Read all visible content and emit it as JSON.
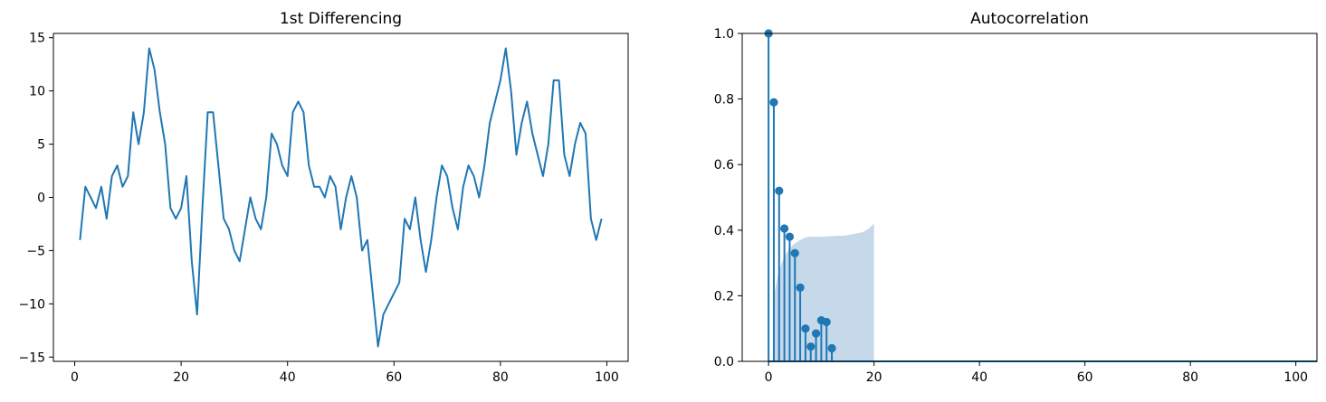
{
  "colors": {
    "series": "#1f77b4",
    "confidence_band": "#c5d9eb",
    "axes": "#000000",
    "background": "#ffffff"
  },
  "chart_data": [
    {
      "type": "line",
      "title": "1st Differencing",
      "xlabel": "",
      "ylabel": "",
      "xlim": [
        -4,
        104
      ],
      "ylim": [
        -15.4,
        15.4
      ],
      "xticks": [
        0,
        20,
        40,
        60,
        80,
        100
      ],
      "xtick_labels": [
        "0",
        "20",
        "40",
        "60",
        "80",
        "100"
      ],
      "yticks": [
        -15,
        -10,
        -5,
        0,
        5,
        10,
        15
      ],
      "ytick_labels": [
        "−15",
        "−10",
        "−5",
        "0",
        "5",
        "10",
        "15"
      ],
      "grid": false,
      "series": [
        {
          "x": [
            1,
            2,
            3,
            4,
            5,
            6,
            7,
            8,
            9,
            10,
            11,
            12,
            13,
            14,
            15,
            16,
            17,
            18,
            19,
            20,
            21,
            22,
            23,
            24,
            25,
            26,
            27,
            28,
            29,
            30,
            31,
            32,
            33,
            34,
            35,
            36,
            37,
            38,
            39,
            40,
            41,
            42,
            43,
            44,
            45,
            46,
            47,
            48,
            49,
            50,
            51,
            52,
            53,
            54,
            55,
            56,
            57,
            58,
            59,
            60,
            61,
            62,
            63,
            64,
            65,
            66,
            67,
            68,
            69,
            70,
            71,
            72,
            73,
            74,
            75,
            76,
            77,
            78,
            79,
            80,
            81,
            82,
            83,
            84,
            85,
            86,
            87,
            88,
            89,
            90,
            91,
            92,
            93,
            94,
            95,
            96,
            97,
            98,
            99
          ],
          "values": [
            -4,
            1,
            0,
            -1,
            1,
            -2,
            2,
            3,
            1,
            2,
            8,
            5,
            8,
            14,
            12,
            8,
            5,
            -1,
            -2,
            -1,
            2,
            -6,
            -11,
            -1,
            8,
            8,
            3,
            -2,
            -3,
            -5,
            -6,
            -3,
            0,
            -2,
            -3,
            0,
            6,
            5,
            3,
            2,
            8,
            9,
            8,
            3,
            1,
            1,
            0,
            2,
            1,
            -3,
            0,
            2,
            0,
            -5,
            -4,
            -9,
            -14,
            -11,
            -10,
            -9,
            -8,
            -2,
            -3,
            0,
            -4,
            -7,
            -4,
            0,
            3,
            2,
            -1,
            -3,
            1,
            3,
            2,
            0,
            3,
            7,
            9,
            11,
            14,
            10,
            4,
            7,
            9,
            6,
            4,
            2,
            5,
            11,
            11,
            4,
            2,
            5,
            7,
            6,
            -2,
            -4,
            -2
          ]
        }
      ]
    },
    {
      "type": "stem",
      "title": "Autocorrelation",
      "xlabel": "",
      "ylabel": "",
      "xlim": [
        -5,
        104
      ],
      "ylim": [
        0,
        1.0
      ],
      "xticks": [
        0,
        20,
        40,
        60,
        80,
        100
      ],
      "xtick_labels": [
        "0",
        "20",
        "40",
        "60",
        "80",
        "100"
      ],
      "yticks": [
        0.0,
        0.2,
        0.4,
        0.6,
        0.8,
        1.0
      ],
      "ytick_labels": [
        "0.0",
        "0.2",
        "0.4",
        "0.6",
        "0.8",
        "1.0"
      ],
      "grid": false,
      "lags": [
        0,
        1,
        2,
        3,
        4,
        5,
        6,
        7,
        8,
        9,
        10,
        11,
        12
      ],
      "acf": [
        1.0,
        0.79,
        0.52,
        0.405,
        0.38,
        0.33,
        0.225,
        0.1,
        0.045,
        0.085,
        0.125,
        0.12,
        0.04
      ],
      "confidence_band": {
        "x": [
          1,
          2,
          3,
          4,
          5,
          6,
          7,
          8,
          9,
          10,
          11,
          12,
          13,
          14,
          15,
          16,
          17,
          18,
          19,
          20
        ],
        "upper": [
          0.2,
          0.28,
          0.32,
          0.345,
          0.36,
          0.37,
          0.378,
          0.38,
          0.38,
          0.38,
          0.381,
          0.382,
          0.383,
          0.383,
          0.385,
          0.388,
          0.391,
          0.395,
          0.405,
          0.42
        ],
        "lower": [
          0,
          0,
          0,
          0,
          0,
          0,
          0,
          0,
          0,
          0,
          0,
          0,
          0,
          0,
          0,
          0,
          0,
          0,
          0,
          0
        ]
      },
      "zero_line_range": [
        0,
        104
      ]
    }
  ]
}
